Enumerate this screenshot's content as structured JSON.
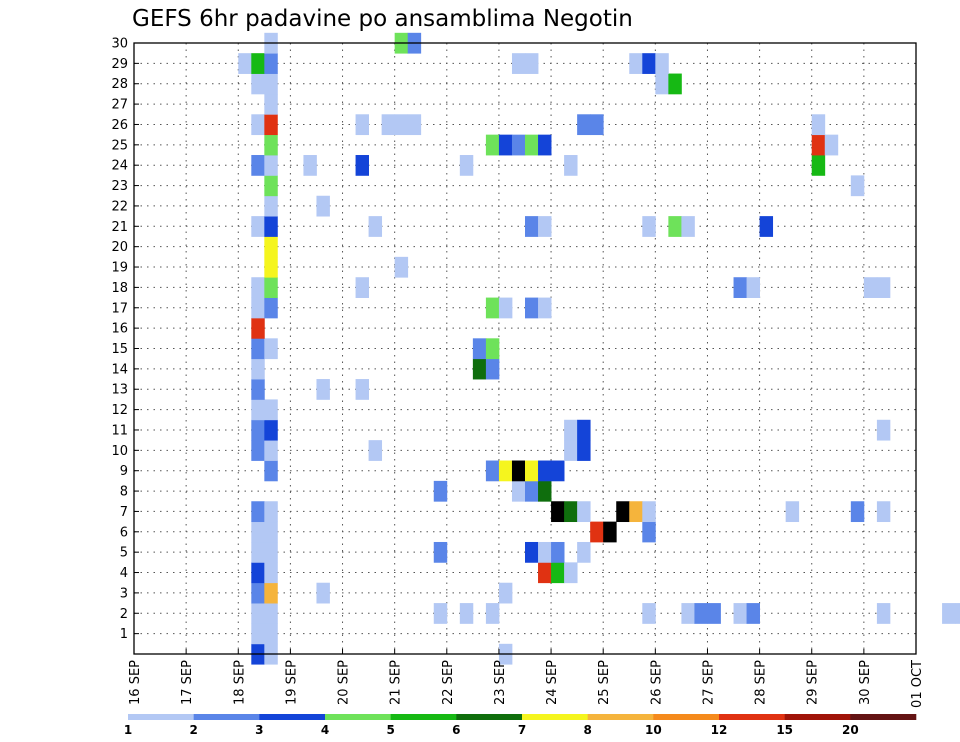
{
  "chart_data": {
    "type": "heatmap",
    "title": "GEFS 6hr padavine po ansamblima Negotin",
    "x_ticks": [
      "16 SEP",
      "17 SEP",
      "18 SEP",
      "19 SEP",
      "20 SEP",
      "21 SEP",
      "22 SEP",
      "23 SEP",
      "24 SEP",
      "25 SEP",
      "26 SEP",
      "27 SEP",
      "28 SEP",
      "29 SEP",
      "30 SEP",
      "01 OCT"
    ],
    "y_ticks": [
      "1",
      "2",
      "3",
      "4",
      "5",
      "6",
      "7",
      "8",
      "9",
      "10",
      "11",
      "12",
      "13",
      "14",
      "15",
      "16",
      "17",
      "18",
      "19",
      "20",
      "21",
      "22",
      "23",
      "24",
      "25",
      "26",
      "27",
      "28",
      "29",
      "30"
    ],
    "x_range_hours": [
      0,
      360
    ],
    "y_range": [
      0,
      30
    ],
    "grid": true,
    "colorbar": {
      "levels": [
        "1",
        "2",
        "3",
        "4",
        "5",
        "6",
        "7",
        "8",
        "10",
        "12",
        "15",
        "20"
      ],
      "colors": [
        "#b3c8f4",
        "#5a85e8",
        "#1444d8",
        "#6ee25a",
        "#16b914",
        "#0f6e0d",
        "#f5f51e",
        "#f5b43c",
        "#f58a1c",
        "#e03212",
        "#a01408",
        "#641414"
      ]
    },
    "cells": [
      [
        54,
        0,
        3
      ],
      [
        60,
        0,
        1
      ],
      [
        168,
        0,
        1
      ],
      [
        54,
        1,
        1
      ],
      [
        60,
        1,
        1
      ],
      [
        54,
        2,
        1
      ],
      [
        60,
        2,
        1
      ],
      [
        138,
        2,
        1
      ],
      [
        150,
        2,
        1
      ],
      [
        162,
        2,
        1
      ],
      [
        234,
        2,
        1
      ],
      [
        252,
        2,
        1
      ],
      [
        258,
        2,
        2
      ],
      [
        264,
        2,
        2
      ],
      [
        276,
        2,
        1
      ],
      [
        282,
        2,
        2
      ],
      [
        342,
        2,
        1
      ],
      [
        372,
        2,
        1
      ],
      [
        378,
        2,
        1
      ],
      [
        54,
        3,
        2
      ],
      [
        60,
        3,
        8
      ],
      [
        84,
        3,
        1
      ],
      [
        168,
        3,
        1
      ],
      [
        54,
        4,
        3
      ],
      [
        60,
        4,
        1
      ],
      [
        186,
        4,
        10
      ],
      [
        192,
        4,
        5
      ],
      [
        198,
        4,
        1
      ],
      [
        54,
        5,
        1
      ],
      [
        60,
        5,
        1
      ],
      [
        138,
        5,
        2
      ],
      [
        180,
        5,
        3
      ],
      [
        186,
        5,
        1
      ],
      [
        192,
        5,
        2
      ],
      [
        204,
        5,
        1
      ],
      [
        54,
        6,
        1
      ],
      [
        60,
        6,
        1
      ],
      [
        210,
        6,
        10
      ],
      [
        216,
        6,
        20
      ],
      [
        234,
        6,
        2
      ],
      [
        54,
        7,
        2
      ],
      [
        60,
        7,
        1
      ],
      [
        192,
        7,
        15
      ],
      [
        198,
        7,
        6
      ],
      [
        204,
        7,
        1
      ],
      [
        222,
        7,
        15
      ],
      [
        228,
        7,
        8
      ],
      [
        234,
        7,
        1
      ],
      [
        300,
        7,
        1
      ],
      [
        330,
        7,
        2
      ],
      [
        342,
        7,
        1
      ],
      [
        138,
        8,
        2
      ],
      [
        174,
        8,
        1
      ],
      [
        180,
        8,
        2
      ],
      [
        186,
        8,
        6
      ],
      [
        60,
        9,
        2
      ],
      [
        162,
        9,
        2
      ],
      [
        168,
        9,
        7
      ],
      [
        174,
        9,
        15
      ],
      [
        180,
        9,
        7
      ],
      [
        186,
        9,
        3
      ],
      [
        192,
        9,
        3
      ],
      [
        54,
        10,
        2
      ],
      [
        60,
        10,
        1
      ],
      [
        108,
        10,
        1
      ],
      [
        198,
        10,
        1
      ],
      [
        204,
        10,
        3
      ],
      [
        54,
        11,
        2
      ],
      [
        60,
        11,
        3
      ],
      [
        198,
        11,
        1
      ],
      [
        204,
        11,
        3
      ],
      [
        342,
        11,
        1
      ],
      [
        54,
        12,
        1
      ],
      [
        60,
        12,
        1
      ],
      [
        54,
        13,
        2
      ],
      [
        84,
        13,
        1
      ],
      [
        102,
        13,
        1
      ],
      [
        54,
        14,
        1
      ],
      [
        156,
        14,
        6
      ],
      [
        162,
        14,
        2
      ],
      [
        54,
        15,
        2
      ],
      [
        60,
        15,
        1
      ],
      [
        156,
        15,
        2
      ],
      [
        162,
        15,
        4
      ],
      [
        54,
        16,
        10
      ],
      [
        54,
        17,
        1
      ],
      [
        60,
        17,
        2
      ],
      [
        162,
        17,
        4
      ],
      [
        168,
        17,
        1
      ],
      [
        180,
        17,
        2
      ],
      [
        186,
        17,
        1
      ],
      [
        54,
        18,
        1
      ],
      [
        60,
        18,
        4
      ],
      [
        102,
        18,
        1
      ],
      [
        276,
        18,
        2
      ],
      [
        282,
        18,
        1
      ],
      [
        336,
        18,
        1
      ],
      [
        342,
        18,
        1
      ],
      [
        60,
        19,
        7
      ],
      [
        120,
        19,
        1
      ],
      [
        60,
        20,
        7
      ],
      [
        54,
        21,
        1
      ],
      [
        60,
        21,
        3
      ],
      [
        108,
        21,
        1
      ],
      [
        180,
        21,
        2
      ],
      [
        186,
        21,
        1
      ],
      [
        234,
        21,
        1
      ],
      [
        246,
        21,
        4
      ],
      [
        252,
        21,
        1
      ],
      [
        288,
        21,
        3
      ],
      [
        60,
        22,
        1
      ],
      [
        84,
        22,
        1
      ],
      [
        60,
        23,
        4
      ],
      [
        330,
        23,
        1
      ],
      [
        54,
        24,
        2
      ],
      [
        60,
        24,
        1
      ],
      [
        78,
        24,
        1
      ],
      [
        102,
        24,
        3
      ],
      [
        150,
        24,
        1
      ],
      [
        198,
        24,
        1
      ],
      [
        312,
        24,
        5
      ],
      [
        60,
        25,
        4
      ],
      [
        162,
        25,
        4
      ],
      [
        168,
        25,
        3
      ],
      [
        174,
        25,
        2
      ],
      [
        180,
        25,
        4
      ],
      [
        186,
        25,
        3
      ],
      [
        312,
        25,
        10
      ],
      [
        318,
        25,
        1
      ],
      [
        54,
        26,
        1
      ],
      [
        60,
        26,
        10
      ],
      [
        102,
        26,
        1
      ],
      [
        114,
        26,
        1
      ],
      [
        120,
        26,
        1
      ],
      [
        126,
        26,
        1
      ],
      [
        204,
        26,
        2
      ],
      [
        210,
        26,
        2
      ],
      [
        312,
        26,
        1
      ],
      [
        60,
        27,
        1
      ],
      [
        54,
        28,
        1
      ],
      [
        60,
        28,
        1
      ],
      [
        240,
        28,
        1
      ],
      [
        246,
        28,
        5
      ],
      [
        48,
        29,
        1
      ],
      [
        54,
        29,
        5
      ],
      [
        60,
        29,
        2
      ],
      [
        174,
        29,
        1
      ],
      [
        180,
        29,
        1
      ],
      [
        228,
        29,
        1
      ],
      [
        234,
        29,
        3
      ],
      [
        240,
        29,
        1
      ],
      [
        60,
        30,
        1
      ],
      [
        120,
        30,
        4
      ],
      [
        126,
        30,
        2
      ]
    ]
  }
}
